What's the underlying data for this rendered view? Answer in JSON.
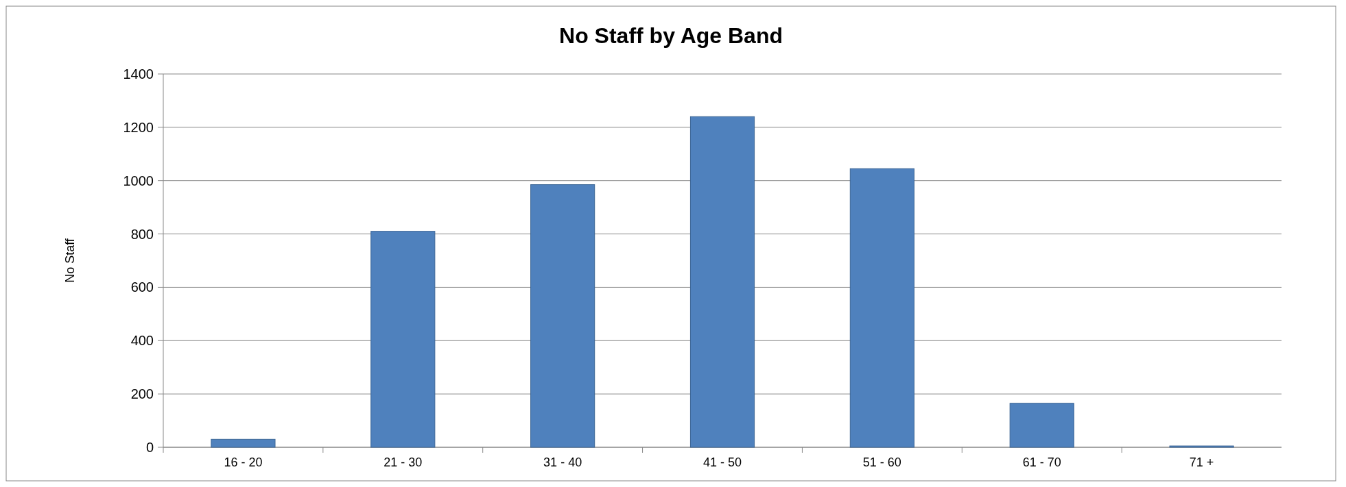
{
  "chart_data": {
    "type": "bar",
    "title": "No Staff by Age Band",
    "ylabel": "No Staff",
    "categories": [
      "16 - 20",
      "21 - 30",
      "31 - 40",
      "41 - 50",
      "51 - 60",
      "61 - 70",
      "71 +"
    ],
    "values": [
      30,
      810,
      985,
      1240,
      1045,
      165,
      5
    ],
    "color": "#4f81bd",
    "ylim": [
      0,
      1400
    ],
    "yticks": [
      0,
      200,
      400,
      600,
      800,
      1000,
      1200,
      1400
    ],
    "grid": true
  }
}
